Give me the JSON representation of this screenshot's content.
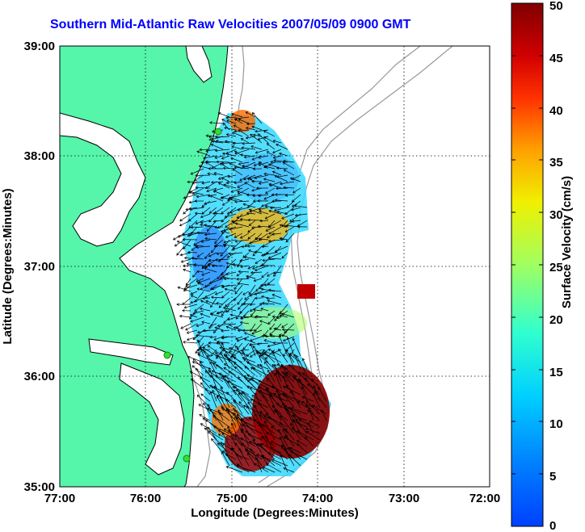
{
  "title": "Southern Mid-Atlantic Raw Velocities 2007/05/09 0900 GMT",
  "colors": {
    "land": "#55f5aa",
    "coast": "#000000",
    "bathymetry": "#999999",
    "station": "#33dd33"
  },
  "chart_data": {
    "type": "vector-field-map",
    "title": "Southern Mid-Atlantic Raw Velocities 2007/05/09 0900 GMT",
    "xlabel": "Longitude (Degrees:Minutes)",
    "ylabel": "Latitude (Degrees:Minutes)",
    "xlim": [
      -77,
      -72
    ],
    "ylim": [
      35,
      39
    ],
    "x_ticks": [
      "77:00",
      "76:00",
      "75:00",
      "74:00",
      "73:00",
      "72:00"
    ],
    "y_ticks": [
      "39:00",
      "38:00",
      "37:00",
      "36:00",
      "35:00"
    ],
    "grid": true,
    "colorbar": {
      "label": "Surface Velocity (cm/s)",
      "range": [
        0,
        50
      ],
      "ticks": [
        "50",
        "45",
        "40",
        "35",
        "30",
        "25",
        "20",
        "15",
        "10",
        "5",
        "0"
      ],
      "placement": "right"
    },
    "stations": [
      {
        "lon": -75.1,
        "lat": 38.22
      },
      {
        "lon": -75.7,
        "lat": 36.16
      },
      {
        "lon": -75.47,
        "lat": 35.3
      }
    ]
  }
}
